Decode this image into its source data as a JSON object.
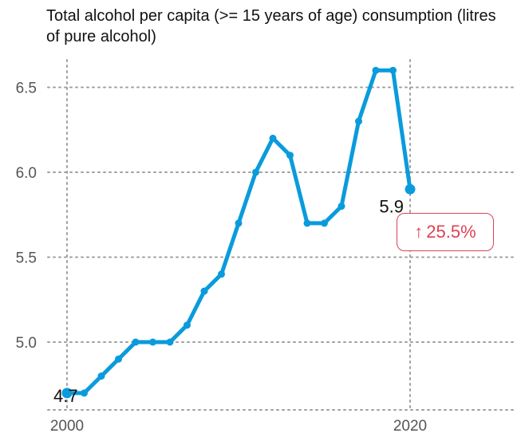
{
  "chart_data": {
    "type": "line",
    "title": "Total alcohol per capita (>= 15 years of age) consumption (litres of pure alcohol)",
    "xlabel": "",
    "ylabel": "",
    "x": [
      2000,
      2001,
      2002,
      2003,
      2004,
      2005,
      2006,
      2007,
      2008,
      2009,
      2010,
      2011,
      2012,
      2013,
      2014,
      2015,
      2016,
      2017,
      2018,
      2019,
      2020
    ],
    "series": [
      {
        "name": "",
        "values": [
          4.7,
          4.7,
          4.8,
          4.9,
          5.0,
          5.0,
          5.0,
          5.1,
          5.3,
          5.4,
          5.7,
          6.0,
          6.2,
          6.1,
          5.7,
          5.7,
          5.8,
          6.3,
          6.6,
          6.6,
          5.9
        ]
      }
    ],
    "xlim": [
      2000,
      2020
    ],
    "ylim": [
      4.7,
      6.6
    ],
    "x_ticks": [
      "2000",
      "2020"
    ],
    "y_ticks": [
      "5.0",
      "5.5",
      "6.0",
      "6.5"
    ],
    "grid": "dotted",
    "line_color": "#0a9bdc",
    "start_label": "4.7",
    "end_label": "5.9",
    "change_badge": {
      "arrow": "↑",
      "text": "25.5%",
      "color": "#e04055"
    }
  }
}
